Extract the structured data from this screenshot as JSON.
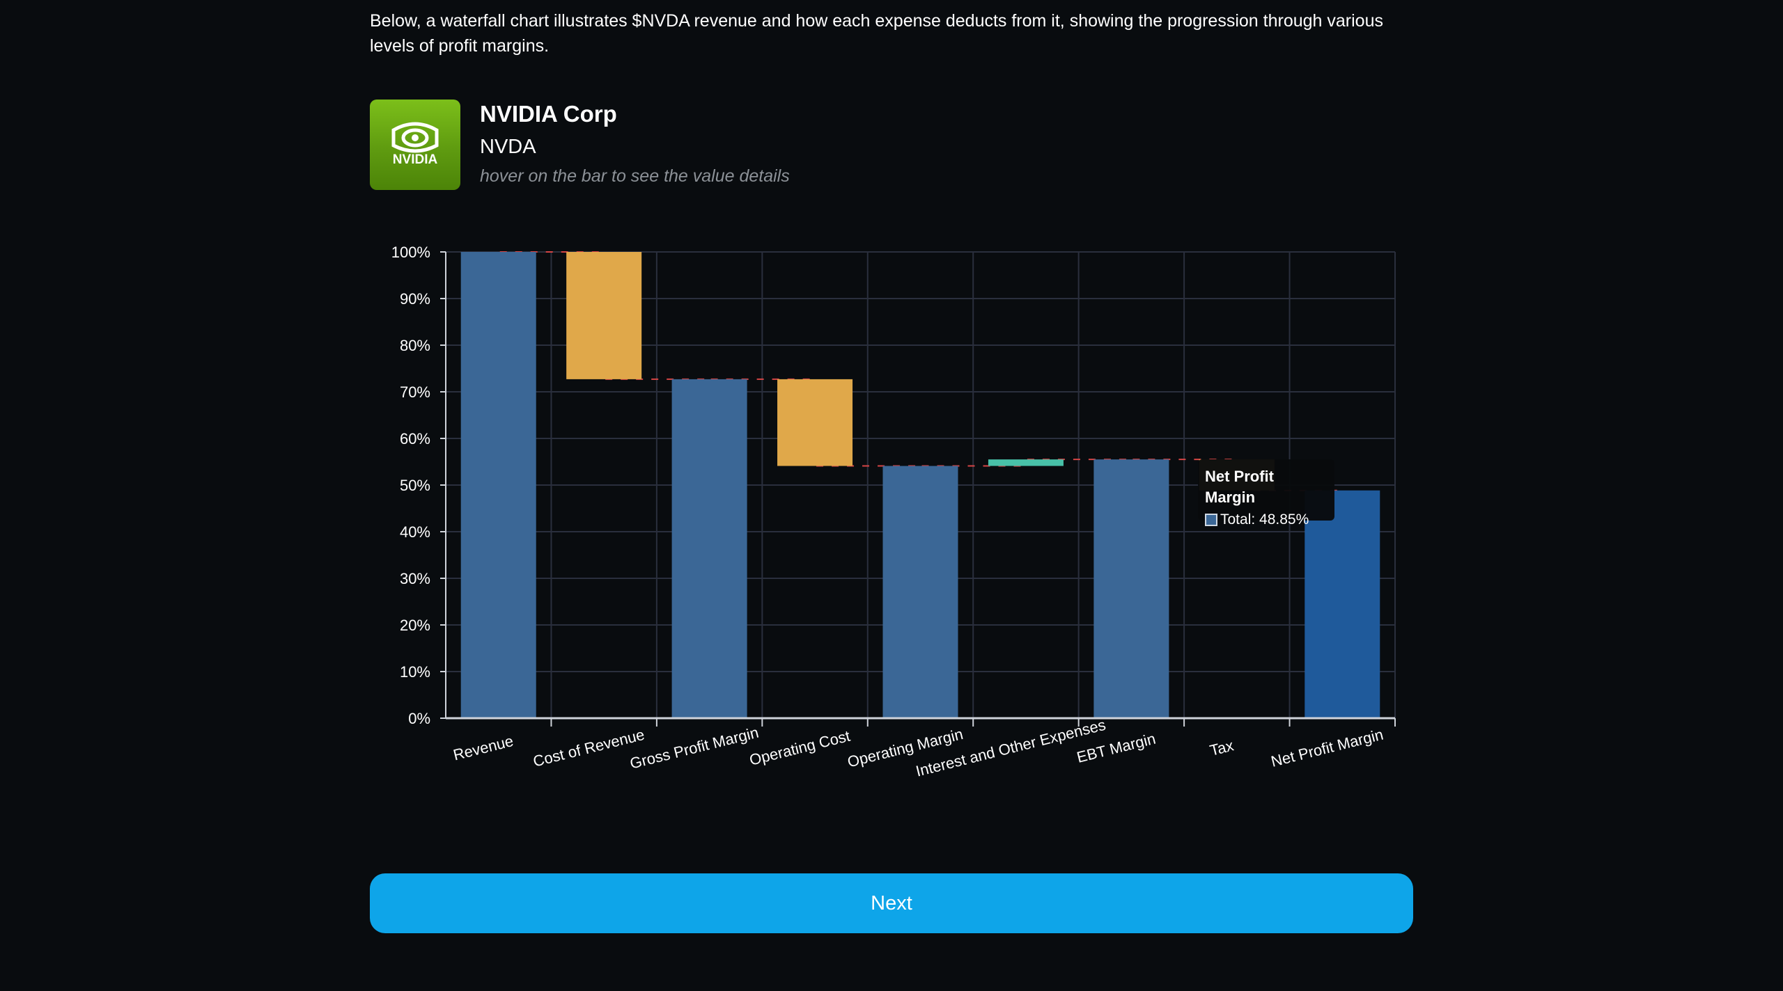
{
  "intro": "Below, a waterfall chart illustrates $NVDA revenue and how each expense deducts from it, showing the progression through various levels of profit margins.",
  "company": {
    "name": "NVIDIA Corp",
    "ticker": "NVDA",
    "logo_text": "NVIDIA",
    "hint": "hover on the bar to see the value details"
  },
  "tooltip": {
    "title": "Net Profit Margin",
    "value_text": "Total: 48.85%"
  },
  "next_label": "Next",
  "colors": {
    "total": "#3b6796",
    "total_highlight": "#1f5a9b",
    "decrease": "#e0a84a",
    "increase": "#48c1a8",
    "connector": "#d64545",
    "grid": "#2a2f3d",
    "button": "#0ea5e9",
    "logo": "#76b900"
  },
  "chart_data": {
    "type": "bar",
    "subtype": "waterfall",
    "categories": [
      "Revenue",
      "Cost of Revenue",
      "Gross Profit Margin",
      "Operating Cost",
      "Operating Margin",
      "Interest and Other Expenses",
      "EBT Margin",
      "Tax",
      "Net Profit Margin"
    ],
    "bars": [
      {
        "label": "Revenue",
        "kind": "total",
        "start": 0,
        "end": 100
      },
      {
        "label": "Cost of Revenue",
        "kind": "decrease",
        "start": 100,
        "end": 72.7
      },
      {
        "label": "Gross Profit Margin",
        "kind": "total",
        "start": 0,
        "end": 72.7
      },
      {
        "label": "Operating Cost",
        "kind": "decrease",
        "start": 72.7,
        "end": 54.1
      },
      {
        "label": "Operating Margin",
        "kind": "total",
        "start": 0,
        "end": 54.1
      },
      {
        "label": "Interest and Other Expenses",
        "kind": "increase",
        "start": 54.1,
        "end": 55.5
      },
      {
        "label": "EBT Margin",
        "kind": "total",
        "start": 0,
        "end": 55.5
      },
      {
        "label": "Tax",
        "kind": "decrease",
        "start": 55.5,
        "end": 48.85
      },
      {
        "label": "Net Profit Margin",
        "kind": "total",
        "start": 0,
        "end": 48.85,
        "highlighted": true
      }
    ],
    "yticks": [
      "0%",
      "10%",
      "20%",
      "30%",
      "40%",
      "50%",
      "60%",
      "70%",
      "80%",
      "90%",
      "100%"
    ],
    "ylim": [
      0,
      100
    ],
    "grid": true,
    "legend": "none"
  }
}
